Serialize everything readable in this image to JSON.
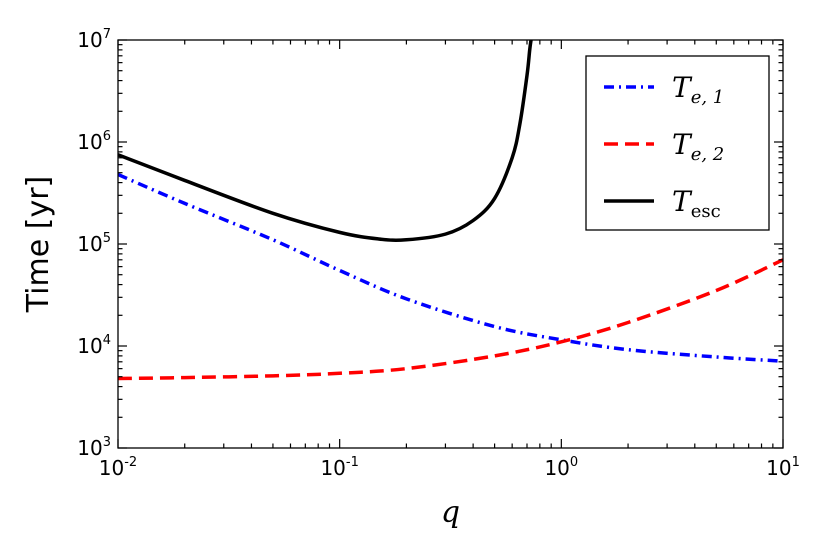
{
  "chart_data": {
    "type": "line",
    "title": "",
    "xlabel": "q",
    "ylabel": "Time [yr]",
    "xscale": "log",
    "yscale": "log",
    "xlim": [
      0.01,
      10
    ],
    "ylim": [
      1000,
      10000000
    ],
    "x_ticks": [
      {
        "base": "10",
        "exp": "-2"
      },
      {
        "base": "10",
        "exp": "-1"
      },
      {
        "base": "10",
        "exp": "0"
      },
      {
        "base": "10",
        "exp": "1"
      }
    ],
    "y_ticks": [
      {
        "base": "10",
        "exp": "3"
      },
      {
        "base": "10",
        "exp": "4"
      },
      {
        "base": "10",
        "exp": "5"
      },
      {
        "base": "10",
        "exp": "6"
      },
      {
        "base": "10",
        "exp": "7"
      }
    ],
    "legend_position": "top-right",
    "grid": false,
    "series": [
      {
        "name": "T_e,1",
        "legend_main": "T",
        "legend_sub": "e, 1",
        "color": "#0000ff",
        "style": "dashdot",
        "x": [
          0.01,
          0.02,
          0.05,
          0.1,
          0.2,
          0.5,
          1,
          2,
          5,
          10
        ],
        "y": [
          480000,
          250000,
          110000,
          55000,
          29000,
          15500,
          11500,
          9200,
          7800,
          7100
        ]
      },
      {
        "name": "T_e,2",
        "legend_main": "T",
        "legend_sub": "e, 2",
        "color": "#ff0000",
        "style": "dashed",
        "x": [
          0.01,
          0.02,
          0.05,
          0.1,
          0.2,
          0.5,
          1,
          2,
          5,
          10
        ],
        "y": [
          4800,
          4900,
          5100,
          5400,
          6000,
          8000,
          11000,
          17000,
          35000,
          70000
        ]
      },
      {
        "name": "T_esc",
        "legend_main": "T",
        "legend_sub": "esc",
        "color": "#000000",
        "style": "solid",
        "x": [
          0.01,
          0.02,
          0.05,
          0.1,
          0.15,
          0.2,
          0.3,
          0.4,
          0.5,
          0.6,
          0.65,
          0.7,
          0.72,
          0.73
        ],
        "y": [
          750000,
          420000,
          200000,
          130000,
          112000,
          110000,
          125000,
          170000,
          280000,
          700000,
          1500000,
          4500000,
          8000000,
          10000000
        ]
      }
    ]
  }
}
